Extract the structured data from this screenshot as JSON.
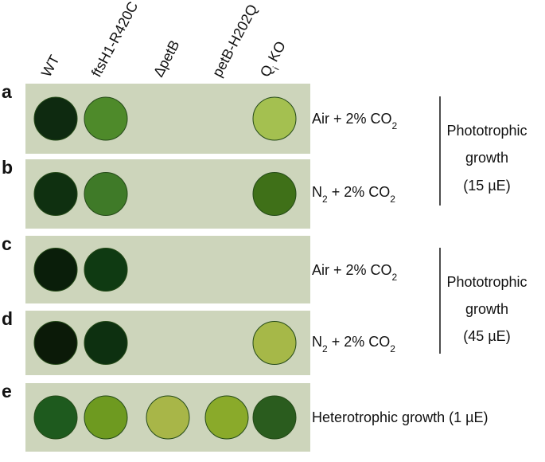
{
  "columns": [
    "WT",
    "ftsH1-R420C",
    "ΔpetB",
    "petB-H202Q",
    {
      "pre": "Q",
      "sub": "i",
      "post": " KO"
    }
  ],
  "rows": [
    {
      "letter": "a",
      "condition": {
        "text": "Air + 2% CO",
        "sub": "2"
      }
    },
    {
      "letter": "b",
      "condition": {
        "text": "N",
        "sub": "2",
        "post": " + 2% CO",
        "sub2": "2"
      }
    },
    {
      "letter": "c",
      "condition": {
        "text": "Air + 2% CO",
        "sub": "2"
      }
    },
    {
      "letter": "d",
      "condition": {
        "text": "N",
        "sub": "2",
        "post": " + 2% CO",
        "sub2": "2"
      }
    },
    {
      "letter": "e",
      "condition": {
        "text": "Heterotrophic growth (1 µE)"
      }
    }
  ],
  "groups": [
    {
      "lines": [
        "Phototrophic",
        "growth",
        "(15 µE)"
      ]
    },
    {
      "lines": [
        "Phototrophic",
        "growth",
        "(45 µE)"
      ]
    }
  ]
}
